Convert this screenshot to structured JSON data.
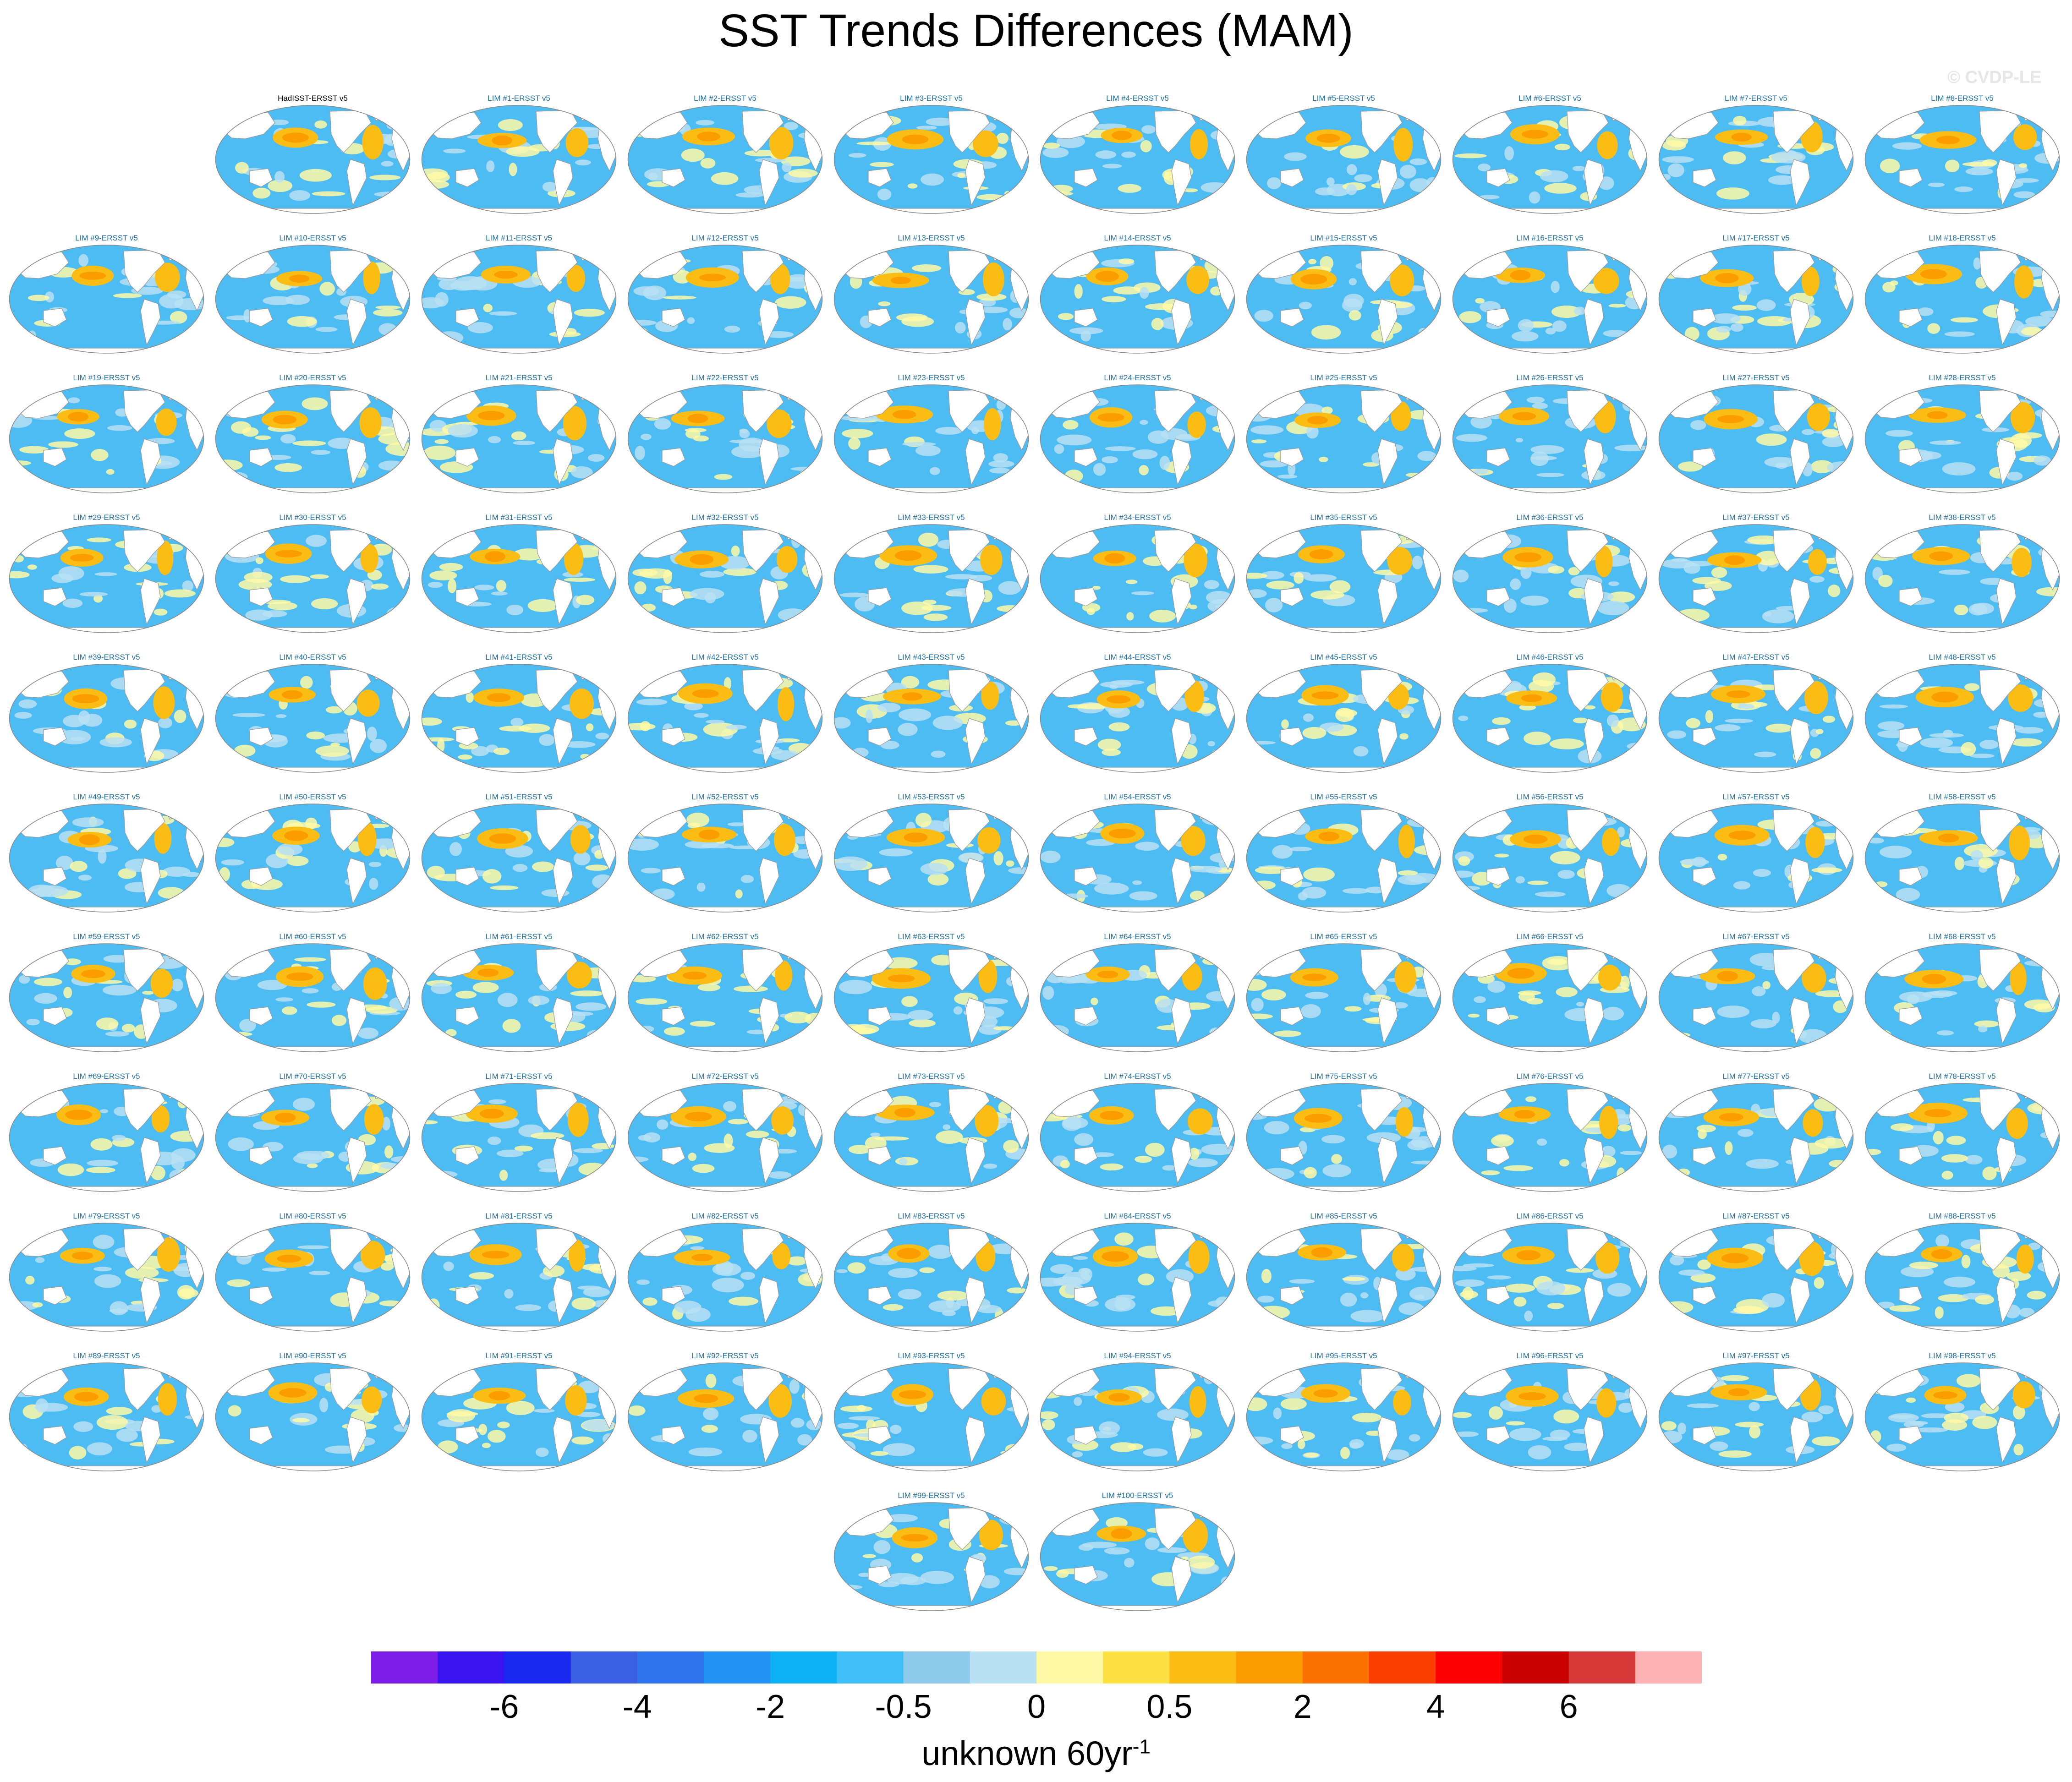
{
  "figure": {
    "title": "SST Trends Differences (MAM)",
    "watermark": "© CVDP-LE"
  },
  "chart_data": {
    "type": "map-panel-grid",
    "title": "SST Trends Differences (MAM)",
    "panel_labels": [
      "HadISST-ERSST v5",
      "LIM #1-ERSST v5",
      "LIM #2-ERSST v5",
      "LIM #3-ERSST v5",
      "LIM #4-ERSST v5",
      "LIM #5-ERSST v5",
      "LIM #6-ERSST v5",
      "LIM #7-ERSST v5",
      "LIM #8-ERSST v5",
      "LIM #9-ERSST v5",
      "LIM #10-ERSST v5",
      "LIM #11-ERSST v5",
      "LIM #12-ERSST v5",
      "LIM #13-ERSST v5",
      "LIM #14-ERSST v5",
      "LIM #15-ERSST v5",
      "LIM #16-ERSST v5",
      "LIM #17-ERSST v5",
      "LIM #18-ERSST v5",
      "LIM #19-ERSST v5",
      "LIM #20-ERSST v5",
      "LIM #21-ERSST v5",
      "LIM #22-ERSST v5",
      "LIM #23-ERSST v5",
      "LIM #24-ERSST v5",
      "LIM #25-ERSST v5",
      "LIM #26-ERSST v5",
      "LIM #27-ERSST v5",
      "LIM #28-ERSST v5",
      "LIM #29-ERSST v5",
      "LIM #30-ERSST v5",
      "LIM #31-ERSST v5",
      "LIM #32-ERSST v5",
      "LIM #33-ERSST v5",
      "LIM #34-ERSST v5",
      "LIM #35-ERSST v5",
      "LIM #36-ERSST v5",
      "LIM #37-ERSST v5",
      "LIM #38-ERSST v5",
      "LIM #39-ERSST v5",
      "LIM #40-ERSST v5",
      "LIM #41-ERSST v5",
      "LIM #42-ERSST v5",
      "LIM #43-ERSST v5",
      "LIM #44-ERSST v5",
      "LIM #45-ERSST v5",
      "LIM #46-ERSST v5",
      "LIM #47-ERSST v5",
      "LIM #48-ERSST v5",
      "LIM #49-ERSST v5",
      "LIM #50-ERSST v5",
      "LIM #51-ERSST v5",
      "LIM #52-ERSST v5",
      "LIM #53-ERSST v5",
      "LIM #54-ERSST v5",
      "LIM #55-ERSST v5",
      "LIM #56-ERSST v5",
      "LIM #57-ERSST v5",
      "LIM #58-ERSST v5",
      "LIM #59-ERSST v5",
      "LIM #60-ERSST v5",
      "LIM #61-ERSST v5",
      "LIM #62-ERSST v5",
      "LIM #63-ERSST v5",
      "LIM #64-ERSST v5",
      "LIM #65-ERSST v5",
      "LIM #66-ERSST v5",
      "LIM #67-ERSST v5",
      "LIM #68-ERSST v5",
      "LIM #69-ERSST v5",
      "LIM #70-ERSST v5",
      "LIM #71-ERSST v5",
      "LIM #72-ERSST v5",
      "LIM #73-ERSST v5",
      "LIM #74-ERSST v5",
      "LIM #75-ERSST v5",
      "LIM #76-ERSST v5",
      "LIM #77-ERSST v5",
      "LIM #78-ERSST v5",
      "LIM #79-ERSST v5",
      "LIM #80-ERSST v5",
      "LIM #81-ERSST v5",
      "LIM #82-ERSST v5",
      "LIM #83-ERSST v5",
      "LIM #84-ERSST v5",
      "LIM #85-ERSST v5",
      "LIM #86-ERSST v5",
      "LIM #87-ERSST v5",
      "LIM #88-ERSST v5",
      "LIM #89-ERSST v5",
      "LIM #90-ERSST v5",
      "LIM #91-ERSST v5",
      "LIM #92-ERSST v5",
      "LIM #93-ERSST v5",
      "LIM #94-ERSST v5",
      "LIM #95-ERSST v5",
      "LIM #96-ERSST v5",
      "LIM #97-ERSST v5",
      "LIM #98-ERSST v5",
      "LIM #99-ERSST v5",
      "LIM #100-ERSST v5"
    ],
    "colorbar": {
      "colors": [
        "#7d1ee8",
        "#3a14f0",
        "#1a28ef",
        "#3a5fe3",
        "#2f74ec",
        "#2394f4",
        "#0cb1f3",
        "#3fbff5",
        "#8ecbeb",
        "#b9e0f3",
        "#fff9a6",
        "#fde044",
        "#fbbd14",
        "#fb9c00",
        "#fb7200",
        "#fb3d00",
        "#fb0000",
        "#c80000",
        "#d63838",
        "#fdb3b3"
      ],
      "tick_labels": [
        "-6",
        "-4",
        "-2",
        "-0.5",
        "0",
        "0.5",
        "2",
        "4",
        "6"
      ],
      "tick_boundary_index": [
        2,
        4,
        6,
        8,
        10,
        12,
        14,
        16,
        18
      ],
      "units_base": "unknown 60yr",
      "units_exp": "-1"
    },
    "panel_fill": {
      "ocean_background": "#4cbcf2",
      "warm_patch": "#fbbd14",
      "hot_patch": "#fb9c00",
      "weak_warm": "#fff9a6",
      "weak_cool": "#b9e0f3",
      "land": "#ffffff",
      "coast": "#9a9a9a"
    }
  }
}
